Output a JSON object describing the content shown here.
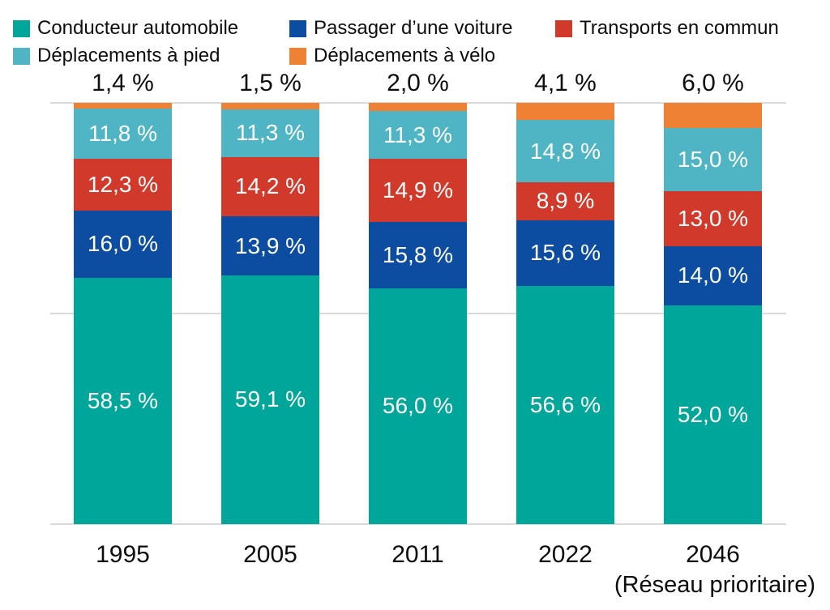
{
  "legend": {
    "items": [
      {
        "label": "Conducteur automobile",
        "color": "#00A69A"
      },
      {
        "label": "Passager d’une voiture",
        "color": "#0C4DA2"
      },
      {
        "label": "Transports en commun",
        "color": "#D13A2B"
      },
      {
        "label": "Déplacements à pied",
        "color": "#4FB4C4"
      },
      {
        "label": "Déplacements à vélo",
        "color": "#EE8134"
      }
    ]
  },
  "chart_data": {
    "type": "bar",
    "stacked": true,
    "unit": "%",
    "title": "",
    "xlabel": "",
    "ylabel": "",
    "ylim": [
      0,
      100
    ],
    "gridlines_pct": [
      0,
      50,
      100
    ],
    "grid_color": "#D9D9D9",
    "legend_position": "top",
    "categories": [
      "1995",
      "2005",
      "2011",
      "2022",
      "2046"
    ],
    "category_note": {
      "index": 4,
      "label": "(Réseau prioritaire)"
    },
    "series": [
      {
        "name": "Conducteur automobile",
        "color": "#00A69A",
        "values": [
          58.5,
          59.1,
          56.0,
          56.6,
          52.0
        ],
        "labels": [
          "58,5 %",
          "59,1 %",
          "56,0 %",
          "56,6 %",
          "52,0 %"
        ],
        "label_color": "#FFFFFF",
        "label_position": "inside"
      },
      {
        "name": "Passager d’une voiture",
        "color": "#0C4DA2",
        "values": [
          16.0,
          13.9,
          15.8,
          15.6,
          14.0
        ],
        "labels": [
          "16,0 %",
          "13,9 %",
          "15,8 %",
          "15,6 %",
          "14,0 %"
        ],
        "label_color": "#FFFFFF",
        "label_position": "inside"
      },
      {
        "name": "Transports en commun",
        "color": "#D13A2B",
        "values": [
          12.3,
          14.2,
          14.9,
          8.9,
          13.0
        ],
        "labels": [
          "12,3 %",
          "14,2 %",
          "14,9 %",
          "8,9 %",
          "13,0 %"
        ],
        "label_color": "#FFFFFF",
        "label_position": "inside"
      },
      {
        "name": "Déplacements à pied",
        "color": "#4FB4C4",
        "values": [
          11.8,
          11.3,
          11.3,
          14.8,
          15.0
        ],
        "labels": [
          "11,8 %",
          "11,3 %",
          "11,3 %",
          "14,8 %",
          "15,0 %"
        ],
        "label_color": "#FFFFFF",
        "label_position": "inside"
      },
      {
        "name": "Déplacements à vélo",
        "color": "#EE8134",
        "values": [
          1.4,
          1.5,
          2.0,
          4.1,
          6.0
        ],
        "labels": [
          "1,4 %",
          "1,5 %",
          "2,0 %",
          "4,1 %",
          "6,0 %"
        ],
        "label_color": "#0d0d0d",
        "label_position": "above"
      }
    ]
  }
}
